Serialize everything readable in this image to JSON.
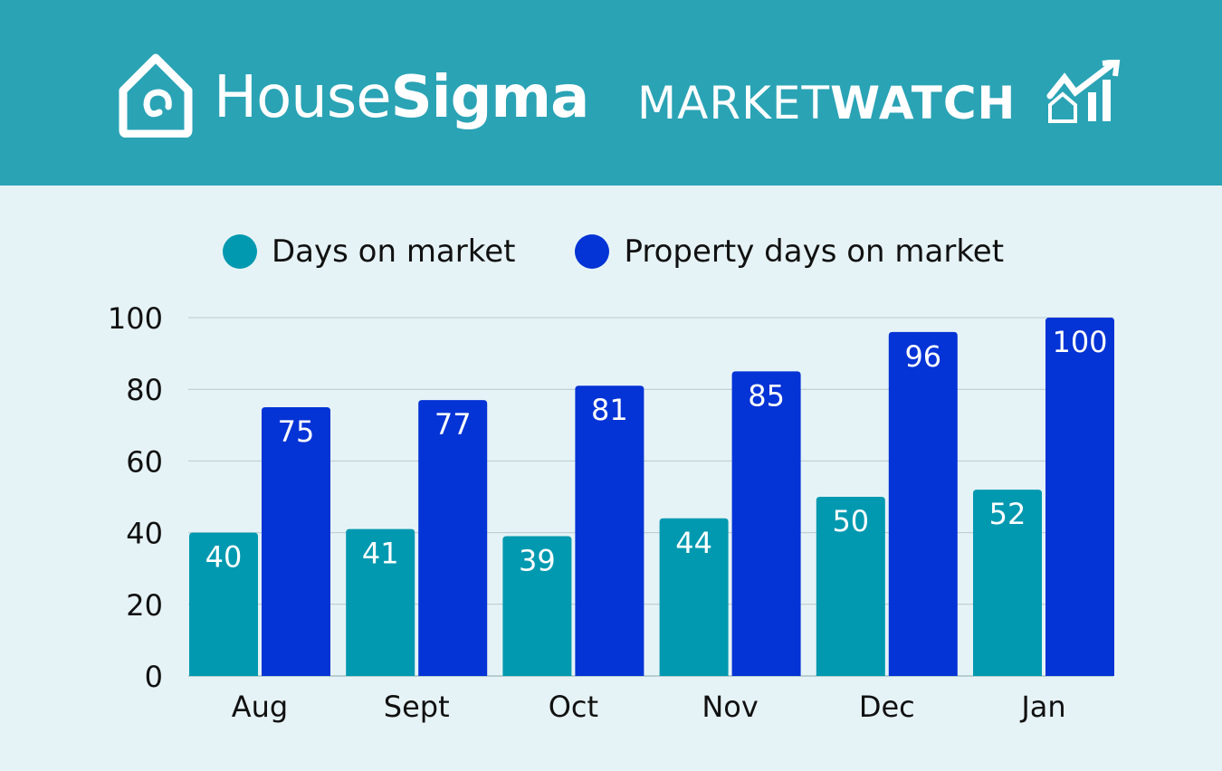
{
  "header": {
    "brand_light": "House",
    "brand_bold": "Sigma",
    "tag_light": "MARKET",
    "tag_bold": "WATCH",
    "logo_icon": "house-spiral-icon",
    "trend_icon": "house-chart-up-icon",
    "background": "#2aa3b5"
  },
  "chart_data": {
    "type": "bar",
    "categories": [
      "Aug",
      "Sept",
      "Oct",
      "Nov",
      "Dec",
      "Jan"
    ],
    "series": [
      {
        "name": "Days on market",
        "values": [
          40,
          41,
          39,
          44,
          50,
          52
        ],
        "color": "#0099b0"
      },
      {
        "name": "Property days on market",
        "values": [
          75,
          77,
          81,
          85,
          96,
          100
        ],
        "color": "#0433d6"
      }
    ],
    "ylim": [
      0,
      100
    ],
    "yticks": [
      "0",
      "20",
      "40",
      "60",
      "80",
      "100"
    ],
    "grid": true,
    "legend": "top",
    "data_labels": true
  }
}
